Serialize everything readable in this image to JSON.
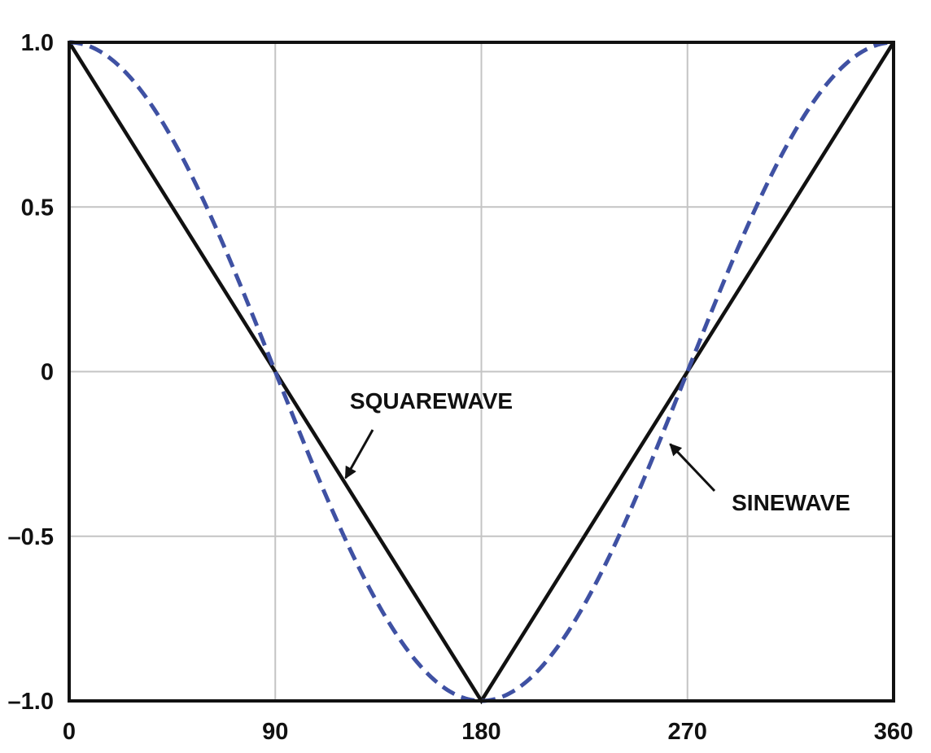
{
  "chart_data": {
    "type": "line",
    "title": "",
    "xlabel": "",
    "ylabel": "",
    "xlim": [
      0,
      360
    ],
    "ylim": [
      -1.0,
      1.0
    ],
    "xticks": [
      0,
      90,
      180,
      270,
      360
    ],
    "xtick_labels": [
      "0",
      "90",
      "180",
      "270",
      "360"
    ],
    "yticks": [
      1.0,
      0.5,
      0,
      -0.5,
      -1.0
    ],
    "ytick_labels": [
      "1.0",
      "0.5",
      "0",
      "–0.5",
      "–1.0"
    ],
    "grid": true,
    "series": [
      {
        "name": "SQUAREWAVE",
        "style": "solid",
        "color": "#111111",
        "x": [
          0,
          180,
          360
        ],
        "y": [
          1.0,
          -1.0,
          1.0
        ]
      },
      {
        "name": "SINEWAVE",
        "style": "dashed",
        "color": "#3f51a3",
        "x": [
          0,
          15,
          30,
          45,
          60,
          75,
          90,
          105,
          120,
          135,
          150,
          165,
          180,
          195,
          210,
          225,
          240,
          255,
          270,
          285,
          300,
          315,
          330,
          345,
          360
        ],
        "y": [
          1.0,
          0.966,
          0.866,
          0.707,
          0.5,
          0.259,
          0.0,
          -0.259,
          -0.5,
          -0.707,
          -0.866,
          -0.966,
          -1.0,
          -0.966,
          -0.866,
          -0.707,
          -0.5,
          -0.259,
          0.0,
          0.259,
          0.5,
          0.707,
          0.866,
          0.966,
          1.0
        ]
      }
    ],
    "annotations": [
      {
        "text": "SQUAREWAVE",
        "target": {
          "x": 120,
          "y": -0.333
        },
        "series": "SQUAREWAVE"
      },
      {
        "text": "SINEWAVE",
        "target": {
          "x": 261,
          "y": -0.24
        },
        "series": "SINEWAVE"
      }
    ]
  }
}
